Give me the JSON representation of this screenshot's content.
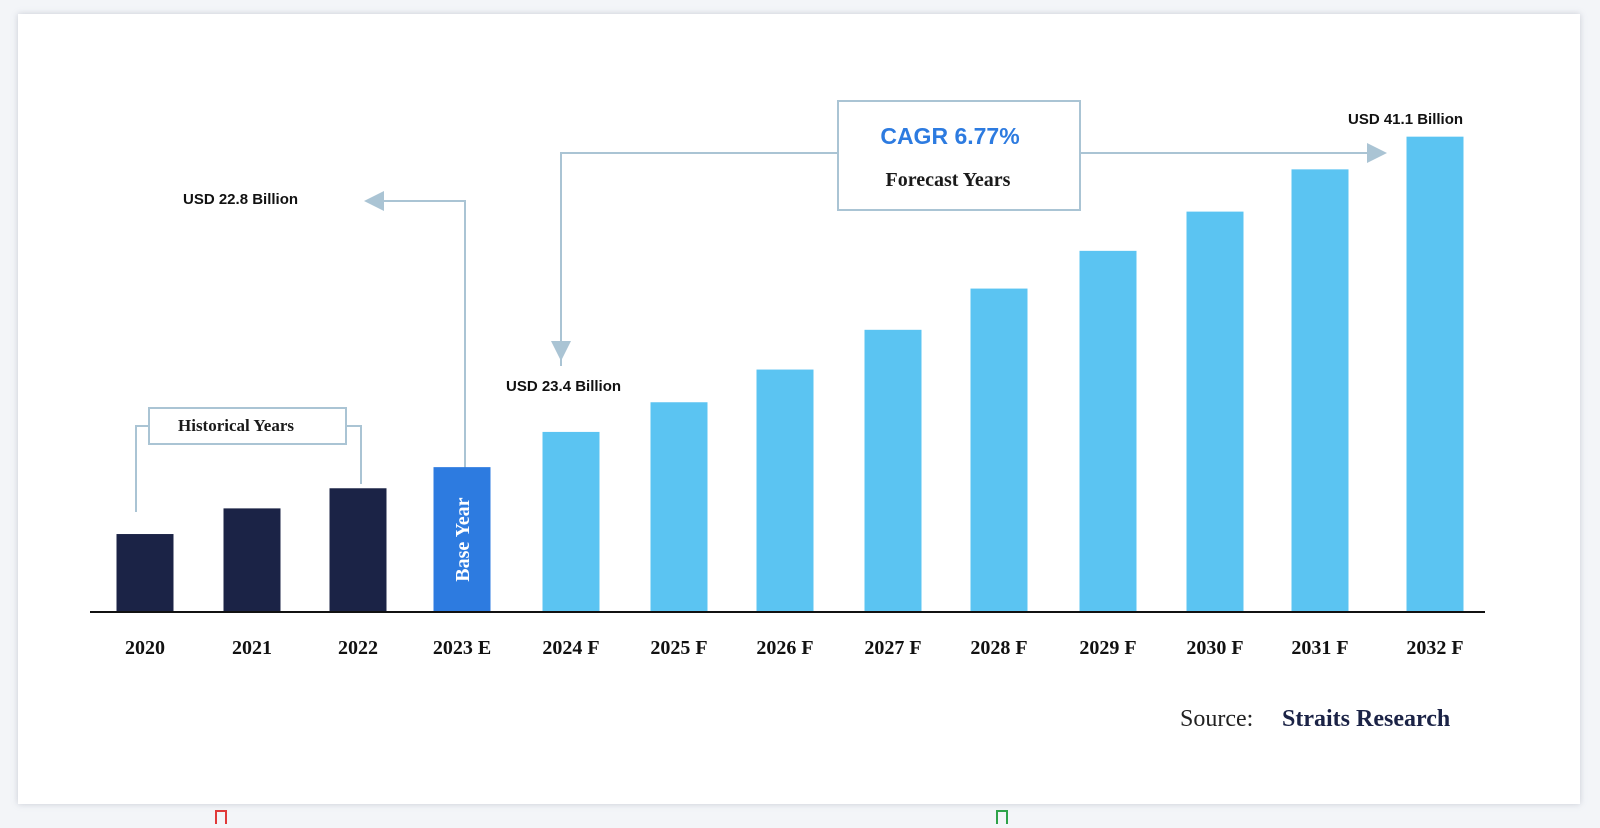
{
  "chart_data": {
    "type": "bar",
    "categories": [
      "2020",
      "2021",
      "2022",
      "2023 E",
      "2024 F",
      "2025 F",
      "2026 F",
      "2027 F",
      "2028 F",
      "2029 F",
      "2030 F",
      "2031 F",
      "2032 F"
    ],
    "values": [
      15.5,
      20.6,
      24.6,
      28.8,
      35.8,
      41.7,
      48.2,
      56.1,
      64.3,
      71.8,
      79.6,
      88.0,
      94.5
    ],
    "ylim": [
      0,
      100
    ],
    "grid": false,
    "bar_groups": [
      "historical",
      "historical",
      "historical",
      "base",
      "forecast",
      "forecast",
      "forecast",
      "forecast",
      "forecast",
      "forecast",
      "forecast",
      "forecast",
      "forecast"
    ],
    "colors": {
      "historical": "#1b2346",
      "base": "#2d7be0",
      "forecast": "#5bc4f2",
      "callout": "#aac4d4",
      "cagr": "#2d7be0"
    },
    "base_bar_label": "Base Year",
    "annotations": {
      "usd_2023": "USD 22.8 Billion",
      "usd_2024": "USD 23.4 Billion",
      "usd_2032": "USD 41.1 Billion",
      "cagr": "CAGR 6.77%",
      "forecast_years": "Forecast Years",
      "historical_years": "Historical Years"
    }
  },
  "source": {
    "label": "Source:",
    "name": "Straits Research"
  },
  "footer_icon_colors": [
    "#e03a3a",
    "#2ea34a"
  ]
}
